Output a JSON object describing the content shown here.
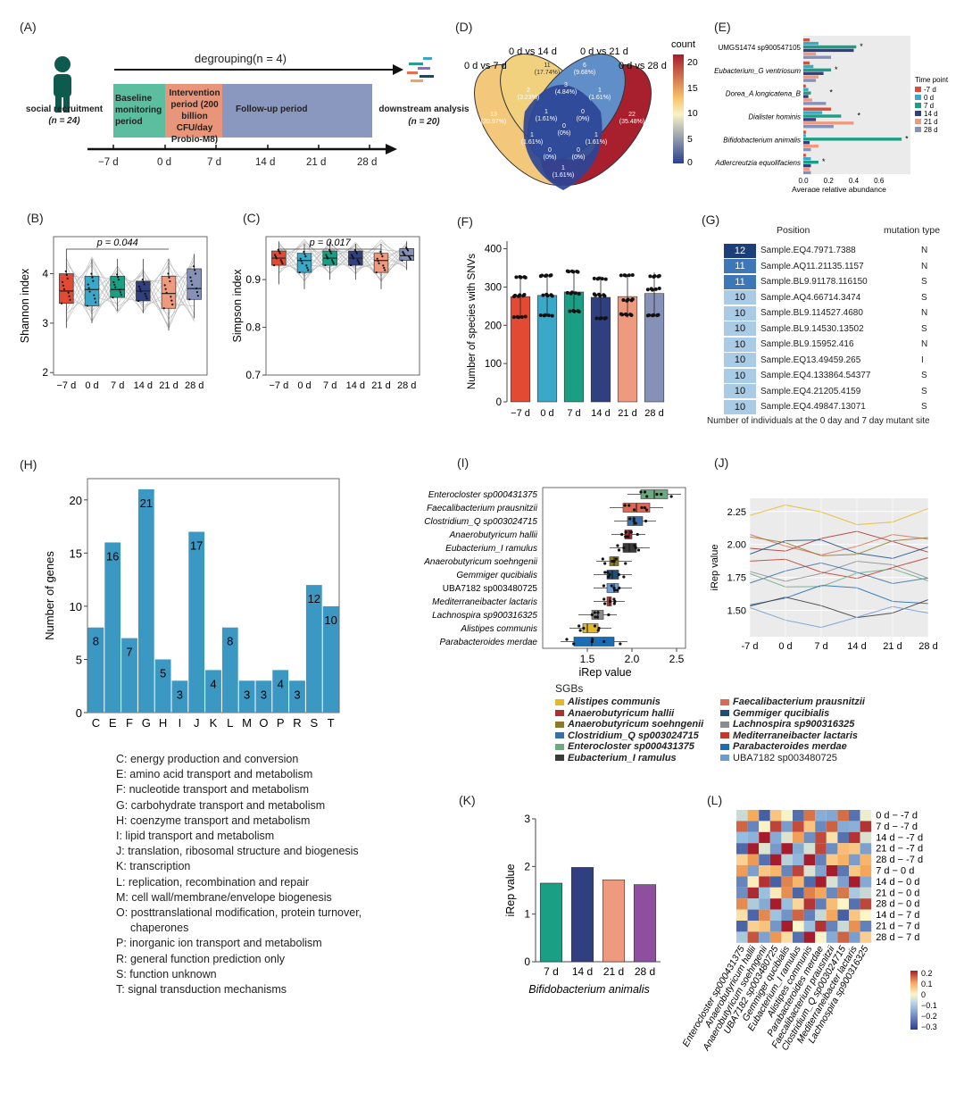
{
  "labels": {
    "A": "(A)",
    "B": "(B)",
    "C": "(C)",
    "D": "(D)",
    "E": "(E)",
    "F": "(F)",
    "G": "(G)",
    "H": "(H)",
    "I": "(I)",
    "J": "(J)",
    "K": "(K)",
    "L": "(L)"
  },
  "panelA": {
    "recruit": "social recruitment",
    "recruit_n": "(n = 24)",
    "degroup": "degrouping(n = 4)",
    "phases": [
      {
        "label": "Baseline monitoring period",
        "color": "#5bbf9f"
      },
      {
        "label": "Intervention period (200 billion CFU/day Probio-M8)",
        "color": "#e8957a"
      },
      {
        "label": "Follow-up period",
        "color": "#8a97bf"
      }
    ],
    "downstream": "downstream analysis",
    "downstream_n": "(n = 20)",
    "timeline": [
      "−7 d",
      "0 d",
      "7 d",
      "14 d",
      "21 d",
      "28 d"
    ]
  },
  "panelB": {
    "ylabel": "Shannon index",
    "pvalue": "p = 0.044",
    "xticks": [
      "−7 d",
      "0 d",
      "7 d",
      "14 d",
      "21 d",
      "28 d"
    ],
    "yticks": [
      "2",
      "3",
      "4"
    ]
  },
  "panelC": {
    "ylabel": "Simpson index",
    "pvalue": "p = 0.017",
    "xticks": [
      "−7 d",
      "0 d",
      "7 d",
      "14 d",
      "21 d",
      "28 d"
    ],
    "yticks": [
      "0.7",
      "0.8",
      "0.9"
    ]
  },
  "panelD": {
    "sets": [
      "0 d vs 7 d",
      "0 d vs 14 d",
      "0 d vs 21 d",
      "0 d vs 28 d"
    ],
    "legend_title": "count",
    "legend_ticks": [
      "20",
      "15",
      "10",
      "5",
      "0"
    ],
    "regions": [
      {
        "n": "13",
        "p": "(20.97%)"
      },
      {
        "n": "11",
        "p": "(17.74%)"
      },
      {
        "n": "6",
        "p": "(9.68%)"
      },
      {
        "n": "22",
        "p": "(35.48%)"
      },
      {
        "n": "2",
        "p": "(3.23%)"
      },
      {
        "n": "3",
        "p": "(4.84%)"
      },
      {
        "n": "1",
        "p": "(1.61%)"
      },
      {
        "n": "1",
        "p": "(1.61%)"
      },
      {
        "n": "0",
        "p": "(0%)"
      },
      {
        "n": "0",
        "p": "(0%)"
      },
      {
        "n": "1",
        "p": "(1.61%)"
      },
      {
        "n": "1",
        "p": "(1.61%)"
      },
      {
        "n": "0",
        "p": "(0%)"
      },
      {
        "n": "0",
        "p": "(0%)"
      },
      {
        "n": "1",
        "p": "(1.61%)"
      }
    ]
  },
  "panelE": {
    "species": [
      "UMGS1474 sp900547105",
      "Eubacterium_G ventriosum",
      "Dorea_A longicatena_B",
      "Dialister hominis",
      "Bifidobacterium animalis",
      "Adlercreutzia equolifaciens"
    ],
    "xlabel": "Average relative abundance",
    "xticks": [
      "0.0",
      "0.2",
      "0.4",
      "0.6"
    ],
    "legend_title": "Time point",
    "legend": [
      {
        "label": "-7 d",
        "color": "#e24a33"
      },
      {
        "label": "0 d",
        "color": "#3aa9c9"
      },
      {
        "label": "7 d",
        "color": "#1a9e84"
      },
      {
        "label": "14 d",
        "color": "#2f3f7f"
      },
      {
        "label": "21 d",
        "color": "#ef9a7e"
      },
      {
        "label": "28 d",
        "color": "#8691b8"
      }
    ]
  },
  "panelF": {
    "ylabel": "Number of species with SNVs",
    "xticks": [
      "−7 d",
      "0 d",
      "7 d",
      "14 d",
      "21 d",
      "28 d"
    ],
    "yticks": [
      "0",
      "100",
      "200",
      "300",
      "400"
    ]
  },
  "panelG": {
    "col1": "Position",
    "col2": "mutation type",
    "rows": [
      {
        "n": "12",
        "pos": "Sample.EQ4.7971.7388",
        "t": "N"
      },
      {
        "n": "11",
        "pos": "Sample.AQ11.21135.1157",
        "t": "N"
      },
      {
        "n": "11",
        "pos": "Sample.BL9.91178.116150",
        "t": "S"
      },
      {
        "n": "10",
        "pos": "Sample.AQ4.66714.3474",
        "t": "S"
      },
      {
        "n": "10",
        "pos": "Sample.BL9.114527.4680",
        "t": "N"
      },
      {
        "n": "10",
        "pos": "Sample.BL9.14530.13502",
        "t": "S"
      },
      {
        "n": "10",
        "pos": "Sample.BL9.15952.416",
        "t": "N"
      },
      {
        "n": "10",
        "pos": "Sample.EQ13.49459.265",
        "t": "I"
      },
      {
        "n": "10",
        "pos": "Sample.EQ4.133864.54377",
        "t": "S"
      },
      {
        "n": "10",
        "pos": "Sample.EQ4.21205.4159",
        "t": "S"
      },
      {
        "n": "10",
        "pos": "Sample.EQ4.49847.13071",
        "t": "S"
      }
    ],
    "caption": "Number of individuals at the 0 day and 7 day mutant site"
  },
  "panelH": {
    "ylabel": "Number of genes",
    "yticks": [
      "0",
      "5",
      "10",
      "15",
      "20"
    ],
    "legend": [
      "C: energy production and conversion",
      "E: amino acid transport and metabolism",
      "F: nucleotide transport and metabolism",
      "G: carbohydrate transport and metabolism",
      "H: coenzyme transport and metabolism",
      "I: lipid transport and metabolism",
      "J: translation, ribosomal structure and biogenesis",
      "K: transcription",
      "L: replication, recombination and repair",
      "M: cell wall/membrane/envelope biogenesis",
      "O: posttranslational modification, protein turnover,",
      "chaperones",
      "P: inorganic ion transport and metabolism",
      "R: general function prediction only",
      "S: function unknown",
      "T: signal transduction mechanisms"
    ]
  },
  "panelI": {
    "species": [
      "Enterocloster sp000431375",
      "Faecalibacterium prausnitzii",
      "Clostridium_Q sp003024715",
      "Anaerobutyricum hallii",
      "Eubacterium_I ramulus",
      "Anaerobutyricum soehngenii",
      "Gemmiger qucibialis",
      "UBA7182 sp003480725",
      "Mediterraneibacter lactaris",
      "Lachnospira sp900316325",
      "Alistipes communis",
      "Parabacteroides merdae"
    ],
    "xlabel": "iRep value",
    "xticks": [
      "1.5",
      "2.0",
      "2.5"
    ],
    "legend_title": "SGBs",
    "legend": [
      {
        "label": "Alistipes communis",
        "color": "#e5b925"
      },
      {
        "label": "Faecalibacterium prausnitzii",
        "color": "#d96b56"
      },
      {
        "label": "Anaerobutyricum hallii",
        "color": "#a83232"
      },
      {
        "label": "Gemmiger qucibialis",
        "color": "#1f4e79"
      },
      {
        "label": "Anaerobutyricum soehngenii",
        "color": "#8b7a2b"
      },
      {
        "label": "Lachnospira sp900316325",
        "color": "#8c8c8c"
      },
      {
        "label": "Clostridium_Q sp003024715",
        "color": "#3b6ea5"
      },
      {
        "label": "Mediterraneibacter lactaris",
        "color": "#c0392b"
      },
      {
        "label": "Enterocloster sp000431375",
        "color": "#6aaa7f"
      },
      {
        "label": "Parabacteroides merdae",
        "color": "#1b6db3"
      },
      {
        "label": "Eubacterium_I ramulus",
        "color": "#3a3a3a"
      },
      {
        "label": "UBA7182 sp003480725",
        "color": "#6c9bd2"
      }
    ]
  },
  "panelJ": {
    "ylabel": "iRep value",
    "xticks": [
      "-7 d",
      "0 d",
      "7 d",
      "14 d",
      "21 d",
      "28 d"
    ],
    "yticks": [
      "1.50",
      "1.75",
      "2.00",
      "2.25"
    ]
  },
  "panelK": {
    "ylabel": "iRep value",
    "species": "Bifidobacterium animalis",
    "yticks": [
      "0",
      "1",
      "2",
      "3"
    ]
  },
  "panelL": {
    "rows": [
      "0 d − -7 d",
      "7 d − -7 d",
      "14 d − -7 d",
      "21 d − -7 d",
      "28 d − -7 d",
      "7 d − 0 d",
      "14 d − 0 d",
      "21 d − 0 d",
      "28 d − 0 d",
      "14 d − 7 d",
      "21 d − 7 d",
      "28 d − 7 d"
    ],
    "cols": [
      "Enterocloster sp000431375",
      "Anaerobutyricum hallii",
      "Anaerobutyricum soehngenii",
      "UBA7182 sp003480725",
      "Gemmiger qucibialis",
      "Eubacterium_I ramulus",
      "Alistipes communis",
      "Parabacteroides merdae",
      "Faecalibacterium prausnitzii",
      "Clostridium_Q sp003024715",
      "Mediterraneibacter lactaris",
      "Lachnospira sp900316325"
    ],
    "legend_ticks": [
      "0.2",
      "0.1",
      "0",
      "−0.1",
      "−0.2",
      "−0.3"
    ]
  },
  "chart_data": [
    {
      "type": "box",
      "id": "B",
      "ylabel": "Shannon index",
      "categories": [
        "−7 d",
        "0 d",
        "7 d",
        "14 d",
        "21 d",
        "28 d"
      ],
      "medians": [
        3.65,
        3.68,
        3.68,
        3.65,
        3.6,
        3.7
      ],
      "q1": [
        3.4,
        3.35,
        3.52,
        3.45,
        3.3,
        3.48
      ],
      "q3": [
        4.0,
        3.95,
        3.95,
        3.85,
        3.95,
        4.1
      ],
      "whisker_low": [
        2.9,
        3.0,
        3.25,
        3.2,
        2.85,
        3.1
      ],
      "whisker_high": [
        4.5,
        4.3,
        4.3,
        4.3,
        4.3,
        4.4
      ],
      "ylim": [
        1.95,
        4.75
      ]
    },
    {
      "type": "box",
      "id": "C",
      "ylabel": "Simpson index",
      "categories": [
        "−7 d",
        "0 d",
        "7 d",
        "14 d",
        "21 d",
        "28 d"
      ],
      "medians": [
        0.945,
        0.94,
        0.945,
        0.945,
        0.94,
        0.95
      ],
      "q1": [
        0.93,
        0.915,
        0.93,
        0.93,
        0.915,
        0.94
      ],
      "q3": [
        0.96,
        0.955,
        0.96,
        0.96,
        0.955,
        0.965
      ],
      "whisker_low": [
        0.89,
        0.88,
        0.9,
        0.9,
        0.88,
        0.92
      ],
      "whisker_high": [
        0.98,
        0.975,
        0.98,
        0.975,
        0.975,
        0.98
      ],
      "ylim": [
        0.7,
        0.99
      ]
    },
    {
      "type": "bar",
      "id": "F",
      "ylabel": "Number of species with SNVs",
      "categories": [
        "−7 d",
        "0 d",
        "7 d",
        "14 d",
        "21 d",
        "28 d"
      ],
      "values": [
        275,
        278,
        287,
        273,
        275,
        283
      ],
      "ylim": [
        0,
        420
      ]
    },
    {
      "type": "bar",
      "id": "H",
      "ylabel": "Number of genes",
      "categories": [
        "C",
        "E",
        "F",
        "G",
        "H",
        "I",
        "J",
        "K",
        "L",
        "M",
        "O",
        "P",
        "R",
        "S",
        "T"
      ],
      "values": [
        8,
        16,
        7,
        21,
        5,
        3,
        17,
        4,
        8,
        3,
        3,
        4,
        3,
        12,
        10
      ],
      "ylim": [
        0,
        22
      ]
    },
    {
      "type": "bar",
      "id": "K",
      "ylabel": "iRep value",
      "categories": [
        "7 d",
        "14 d",
        "21 d",
        "28 d"
      ],
      "values": [
        1.65,
        1.98,
        1.72,
        1.62
      ],
      "colors": [
        "#1a9e84",
        "#2f3f7f",
        "#ef9a7e",
        "#8e4fa0"
      ],
      "ylim": [
        0,
        3
      ]
    },
    {
      "type": "box",
      "id": "I",
      "xlabel": "iRep value",
      "categories": [
        "Enterocloster sp000431375",
        "Faecalibacterium prausnitzii",
        "Clostridium_Q sp003024715",
        "Anaerobutyricum hallii",
        "Eubacterium_I ramulus",
        "Anaerobutyricum soehngenii",
        "Gemmiger qucibialis",
        "UBA7182 sp003480725",
        "Mediterraneibacter lactaris",
        "Lachnospira sp900316325",
        "Alistipes communis",
        "Parabacteroides merdae"
      ],
      "q1": [
        2.1,
        1.9,
        1.95,
        1.92,
        1.9,
        1.75,
        1.72,
        1.72,
        1.72,
        1.55,
        1.45,
        1.35
      ],
      "median": [
        2.25,
        2.05,
        2.02,
        1.97,
        1.97,
        1.8,
        1.78,
        1.8,
        1.75,
        1.62,
        1.5,
        1.55
      ],
      "q3": [
        2.4,
        2.2,
        2.12,
        2.0,
        2.05,
        1.85,
        1.85,
        1.85,
        1.77,
        1.68,
        1.62,
        1.8
      ],
      "xlim": [
        1.0,
        2.6
      ]
    },
    {
      "type": "bar",
      "id": "E",
      "xlabel": "Average relative abundance",
      "categories": [
        "UMGS1474 sp900547105",
        "Eubacterium_G ventriosum",
        "Dorea_A longicatena_B",
        "Dialister hominis",
        "Bifidobacterium animalis",
        "Adlercreutzia equolifaciens"
      ],
      "series": [
        {
          "name": "-7 d",
          "values": [
            0.05,
            0.05,
            0.02,
            0.22,
            0.02,
            0.02
          ]
        },
        {
          "name": "0 d",
          "values": [
            0.12,
            0.08,
            0.04,
            0.15,
            0.02,
            0.06
          ]
        },
        {
          "name": "7 d",
          "values": [
            0.42,
            0.22,
            0.06,
            0.3,
            0.78,
            0.12
          ]
        },
        {
          "name": "14 d",
          "values": [
            0.4,
            0.16,
            0.04,
            0.1,
            0.05,
            0.06
          ]
        },
        {
          "name": "21 d",
          "values": [
            0.1,
            0.12,
            0.07,
            0.4,
            0.12,
            0.05
          ]
        },
        {
          "name": "28 d",
          "values": [
            0.22,
            0.1,
            0.18,
            0.24,
            0.06,
            0.06
          ]
        }
      ],
      "xlim": [
        0,
        0.85
      ]
    }
  ]
}
